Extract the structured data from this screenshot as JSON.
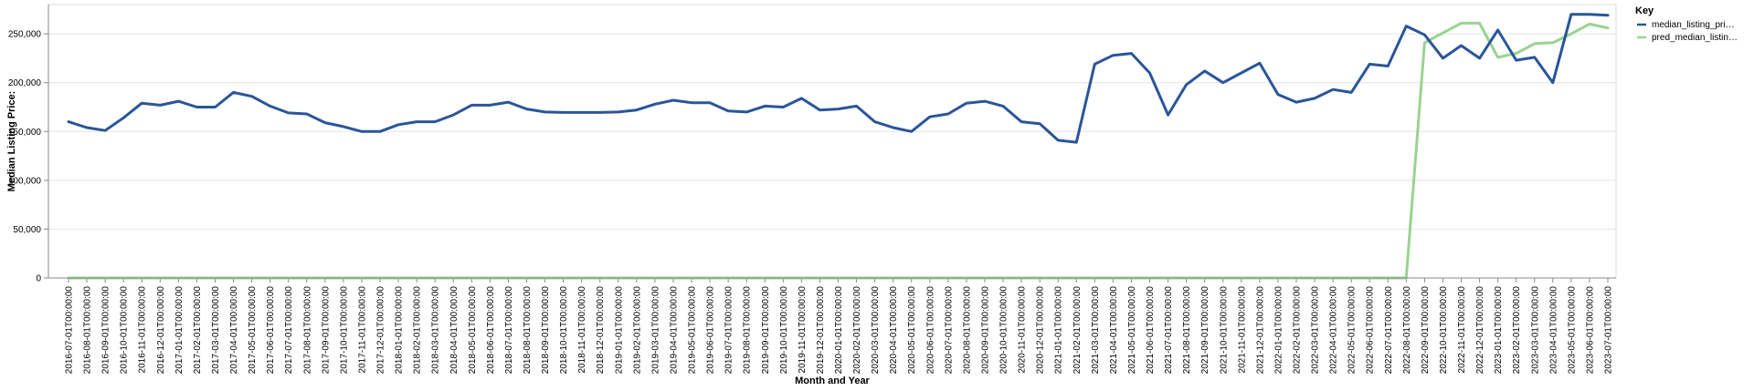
{
  "chart_data": {
    "type": "line",
    "xlabel": "Month and Year",
    "ylabel": "Median Listing Price:",
    "ylim": [
      0,
      280000
    ],
    "yticks": [
      0,
      50000,
      100000,
      150000,
      200000,
      250000
    ],
    "ytick_labels": [
      "0",
      "50,000",
      "100,000",
      "150,000",
      "200,000",
      "250,000"
    ],
    "grid": true,
    "legend": {
      "title": "Key",
      "placement": "top-right"
    },
    "x": [
      "2016-07-01T00:00:00",
      "2016-08-01T00:00:00",
      "2016-09-01T00:00:00",
      "2016-10-01T00:00:00",
      "2016-11-01T00:00:00",
      "2016-12-01T00:00:00",
      "2017-01-01T00:00:00",
      "2017-02-01T00:00:00",
      "2017-03-01T00:00:00",
      "2017-04-01T00:00:00",
      "2017-05-01T00:00:00",
      "2017-06-01T00:00:00",
      "2017-07-01T00:00:00",
      "2017-08-01T00:00:00",
      "2017-09-01T00:00:00",
      "2017-10-01T00:00:00",
      "2017-11-01T00:00:00",
      "2017-12-01T00:00:00",
      "2018-01-01T00:00:00",
      "2018-02-01T00:00:00",
      "2018-03-01T00:00:00",
      "2018-04-01T00:00:00",
      "2018-05-01T00:00:00",
      "2018-06-01T00:00:00",
      "2018-07-01T00:00:00",
      "2018-08-01T00:00:00",
      "2018-09-01T00:00:00",
      "2018-10-01T00:00:00",
      "2018-11-01T00:00:00",
      "2018-12-01T00:00:00",
      "2019-01-01T00:00:00",
      "2019-02-01T00:00:00",
      "2019-03-01T00:00:00",
      "2019-04-01T00:00:00",
      "2019-05-01T00:00:00",
      "2019-06-01T00:00:00",
      "2019-07-01T00:00:00",
      "2019-08-01T00:00:00",
      "2019-09-01T00:00:00",
      "2019-10-01T00:00:00",
      "2019-11-01T00:00:00",
      "2019-12-01T00:00:00",
      "2020-01-01T00:00:00",
      "2020-02-01T00:00:00",
      "2020-03-01T00:00:00",
      "2020-04-01T00:00:00",
      "2020-05-01T00:00:00",
      "2020-06-01T00:00:00",
      "2020-07-01T00:00:00",
      "2020-08-01T00:00:00",
      "2020-09-01T00:00:00",
      "2020-10-01T00:00:00",
      "2020-11-01T00:00:00",
      "2020-12-01T00:00:00",
      "2021-01-01T00:00:00",
      "2021-02-01T00:00:00",
      "2021-03-01T00:00:00",
      "2021-04-01T00:00:00",
      "2021-05-01T00:00:00",
      "2021-06-01T00:00:00",
      "2021-07-01T00:00:00",
      "2021-08-01T00:00:00",
      "2021-09-01T00:00:00",
      "2021-10-01T00:00:00",
      "2021-11-01T00:00:00",
      "2021-12-01T00:00:00",
      "2022-01-01T00:00:00",
      "2022-02-01T00:00:00",
      "2022-03-01T00:00:00",
      "2022-04-01T00:00:00",
      "2022-05-01T00:00:00",
      "2022-06-01T00:00:00",
      "2022-07-01T00:00:00",
      "2022-08-01T00:00:00",
      "2022-09-01T00:00:00",
      "2022-10-01T00:00:00",
      "2022-11-01T00:00:00",
      "2022-12-01T00:00:00",
      "2023-01-01T00:00:00",
      "2023-02-01T00:00:00",
      "2023-03-01T00:00:00",
      "2023-04-01T00:00:00",
      "2023-05-01T00:00:00",
      "2023-06-01T00:00:00",
      "2023-07-01T00:00:00"
    ],
    "series": [
      {
        "name": "median_listing_pri…",
        "color": "#2a5599",
        "values": [
          160000,
          154000,
          151000,
          164000,
          179000,
          177000,
          181000,
          175000,
          175000,
          190000,
          186000,
          176000,
          169000,
          168000,
          159000,
          155000,
          150000,
          150000,
          157000,
          160000,
          160000,
          167000,
          177000,
          177000,
          180000,
          173000,
          170000,
          169500,
          169500,
          169500,
          170000,
          172000,
          178000,
          182000,
          179500,
          179500,
          171000,
          170000,
          176000,
          175000,
          184000,
          172000,
          173000,
          176000,
          160000,
          154000,
          150000,
          165000,
          168000,
          179000,
          181000,
          176000,
          160000,
          158000,
          141000,
          139000,
          219000,
          228000,
          230000,
          210000,
          167000,
          198000,
          212000,
          200000,
          210000,
          220000,
          188000,
          180000,
          184000,
          193000,
          190000,
          219000,
          217000,
          258000,
          249000,
          225000,
          238000,
          225000,
          254000,
          223000,
          226000,
          200000,
          270000,
          270000,
          269000
        ]
      },
      {
        "name": "pred_median_listin…",
        "color": "#98d48e",
        "values": [
          0,
          0,
          0,
          0,
          0,
          0,
          0,
          0,
          0,
          0,
          0,
          0,
          0,
          0,
          0,
          0,
          0,
          0,
          0,
          0,
          0,
          0,
          0,
          0,
          0,
          0,
          0,
          0,
          0,
          0,
          0,
          0,
          0,
          0,
          0,
          0,
          0,
          0,
          0,
          0,
          0,
          0,
          0,
          0,
          0,
          0,
          0,
          0,
          0,
          0,
          0,
          0,
          0,
          0,
          0,
          0,
          0,
          0,
          0,
          0,
          0,
          0,
          0,
          0,
          0,
          0,
          0,
          0,
          0,
          0,
          0,
          0,
          0,
          0,
          241000,
          251000,
          261000,
          261000,
          226000,
          230000,
          240000,
          241000,
          250000,
          260000,
          256000
        ]
      }
    ]
  }
}
